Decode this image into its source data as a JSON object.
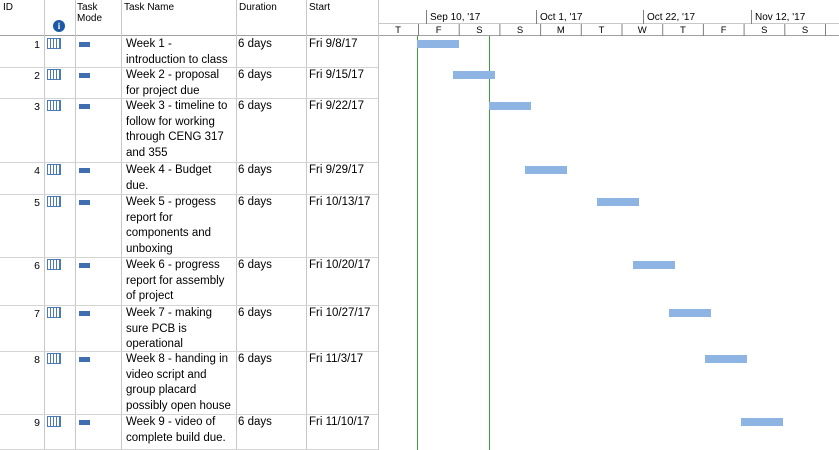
{
  "table": {
    "headers": {
      "id": "ID",
      "task_mode": "Task Mode",
      "task_name": "Task Name",
      "duration": "Duration",
      "start": "Start"
    },
    "rows": [
      {
        "id": 1,
        "name": "Week 1 - introduction to class",
        "duration": "6 days",
        "start": "Fri 9/8/17"
      },
      {
        "id": 2,
        "name": "Week 2 - proposal for project due",
        "duration": "6 days",
        "start": "Fri 9/15/17"
      },
      {
        "id": 3,
        "name": "Week 3 - timeline to follow for working through CENG 317 and 355",
        "duration": "6 days",
        "start": "Fri 9/22/17"
      },
      {
        "id": 4,
        "name": "Week 4 - Budget due.",
        "duration": "6 days",
        "start": "Fri 9/29/17"
      },
      {
        "id": 5,
        "name": "Week 5 - progess report for components and unboxing",
        "duration": "6 days",
        "start": "Fri 10/13/17"
      },
      {
        "id": 6,
        "name": "Week 6 - progress report for assembly of project",
        "duration": "6 days",
        "start": "Fri 10/20/17"
      },
      {
        "id": 7,
        "name": "Week 7 - making sure PCB is operational",
        "duration": "6 days",
        "start": "Fri 10/27/17"
      },
      {
        "id": 8,
        "name": "Week 8 - handing in video script and group placard possibly open house",
        "duration": "6 days",
        "start": "Fri 11/3/17"
      },
      {
        "id": 9,
        "name": "Week 9 - video of complete build due.",
        "duration": "6 days",
        "start": "Fri 11/10/17"
      }
    ]
  },
  "timeline": {
    "top": [
      "Sep 10, '17",
      "Oct 1, '17",
      "Oct 22, '17",
      "Nov 12, '17"
    ],
    "bottom": [
      "T",
      "F",
      "S",
      "S",
      "M",
      "T",
      "W",
      "T",
      "F",
      "S",
      "S"
    ]
  }
}
